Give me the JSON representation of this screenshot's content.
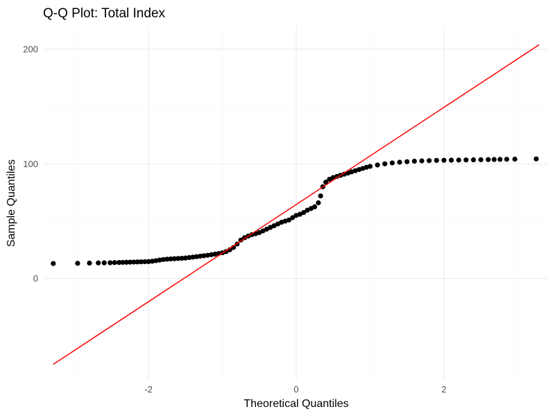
{
  "chart_data": {
    "type": "scatter",
    "title": "Q-Q Plot: Total Index",
    "xlabel": "Theoretical Quantiles",
    "ylabel": "Sample Quantiles",
    "xlim": [
      -3.41,
      3.41
    ],
    "ylim": [
      -88,
      220
    ],
    "x_ticks": [
      -2,
      0,
      2
    ],
    "y_ticks": [
      0,
      100,
      200
    ],
    "x_minor_ticks": [
      -3,
      -1,
      1,
      3
    ],
    "y_minor_ticks": [
      -50,
      50,
      150
    ],
    "grid": true,
    "point_color": "#000000",
    "reference_line": {
      "color": "#ff0000",
      "x": [
        -3.29,
        3.29
      ],
      "y": [
        -75,
        204
      ]
    },
    "series": [
      {
        "points": [
          [
            -3.29,
            13
          ],
          [
            -2.96,
            13.2
          ],
          [
            -2.8,
            13.4
          ],
          [
            -2.68,
            13.5
          ],
          [
            -2.6,
            13.6
          ],
          [
            -2.52,
            13.7
          ],
          [
            -2.46,
            13.8
          ],
          [
            -2.4,
            13.9
          ],
          [
            -2.35,
            14
          ],
          [
            -2.3,
            14.1
          ],
          [
            -2.25,
            14.2
          ],
          [
            -2.2,
            14.3
          ],
          [
            -2.15,
            14.4
          ],
          [
            -2.1,
            14.5
          ],
          [
            -2.05,
            14.6
          ],
          [
            -2.0,
            14.7
          ],
          [
            -1.95,
            15.0
          ],
          [
            -1.9,
            15.5
          ],
          [
            -1.85,
            16.0
          ],
          [
            -1.8,
            16.5
          ],
          [
            -1.75,
            16.8
          ],
          [
            -1.7,
            17.0
          ],
          [
            -1.65,
            17.2
          ],
          [
            -1.6,
            17.4
          ],
          [
            -1.55,
            17.6
          ],
          [
            -1.5,
            17.8
          ],
          [
            -1.45,
            18.2
          ],
          [
            -1.4,
            18.6
          ],
          [
            -1.35,
            19.0
          ],
          [
            -1.3,
            19.4
          ],
          [
            -1.25,
            19.8
          ],
          [
            -1.2,
            20.2
          ],
          [
            -1.15,
            20.7
          ],
          [
            -1.1,
            21.2
          ],
          [
            -1.05,
            21.8
          ],
          [
            -1.0,
            22.4
          ],
          [
            -0.95,
            23.4
          ],
          [
            -0.9,
            25.0
          ],
          [
            -0.85,
            27.0
          ],
          [
            -0.8,
            30.0
          ],
          [
            -0.75,
            33.5
          ],
          [
            -0.7,
            35.5
          ],
          [
            -0.65,
            37.0
          ],
          [
            -0.6,
            38.2
          ],
          [
            -0.55,
            39.0
          ],
          [
            -0.5,
            40.0
          ],
          [
            -0.45,
            41.5
          ],
          [
            -0.4,
            43.0
          ],
          [
            -0.35,
            44.5
          ],
          [
            -0.3,
            46.0
          ],
          [
            -0.25,
            47.5
          ],
          [
            -0.2,
            49.0
          ],
          [
            -0.15,
            50.0
          ],
          [
            -0.1,
            51.0
          ],
          [
            -0.05,
            53.0
          ],
          [
            0.0,
            55.0
          ],
          [
            0.05,
            56.0
          ],
          [
            0.1,
            57.5
          ],
          [
            0.15,
            59.5
          ],
          [
            0.2,
            61.0
          ],
          [
            0.25,
            62.5
          ],
          [
            0.3,
            66.0
          ],
          [
            0.33,
            72.0
          ],
          [
            0.36,
            80.0
          ],
          [
            0.4,
            84.0
          ],
          [
            0.45,
            86.5
          ],
          [
            0.5,
            88.0
          ],
          [
            0.55,
            89.0
          ],
          [
            0.6,
            90.0
          ],
          [
            0.65,
            91.0
          ],
          [
            0.7,
            92.0
          ],
          [
            0.75,
            93.0
          ],
          [
            0.8,
            94.0
          ],
          [
            0.85,
            95.0
          ],
          [
            0.9,
            96.0
          ],
          [
            0.95,
            97.0
          ],
          [
            1.0,
            97.8
          ],
          [
            1.1,
            99.0
          ],
          [
            1.2,
            100.0
          ],
          [
            1.3,
            100.8
          ],
          [
            1.4,
            101.4
          ],
          [
            1.5,
            101.9
          ],
          [
            1.6,
            102.3
          ],
          [
            1.7,
            102.6
          ],
          [
            1.8,
            102.8
          ],
          [
            1.9,
            103.0
          ],
          [
            2.0,
            103.1
          ],
          [
            2.1,
            103.2
          ],
          [
            2.2,
            103.3
          ],
          [
            2.3,
            103.4
          ],
          [
            2.4,
            103.5
          ],
          [
            2.5,
            103.6
          ],
          [
            2.6,
            103.7
          ],
          [
            2.68,
            103.8
          ],
          [
            2.76,
            103.9
          ],
          [
            2.85,
            104.0
          ],
          [
            2.96,
            104.1
          ],
          [
            3.25,
            104.3
          ]
        ]
      }
    ]
  }
}
